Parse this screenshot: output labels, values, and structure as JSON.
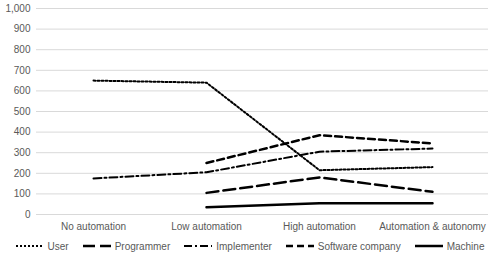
{
  "chart_data": {
    "type": "line",
    "categories": [
      "No automation",
      "Low automation",
      "High automation",
      "Automation & autonomy"
    ],
    "series": [
      {
        "name": "User",
        "color": "#000000",
        "line_style": "dotted",
        "values": [
          650,
          640,
          215,
          230
        ]
      },
      {
        "name": "Programmer",
        "color": "#000000",
        "line_style": "longdash",
        "values": [
          null,
          105,
          180,
          110
        ]
      },
      {
        "name": "Implementer",
        "color": "#000000",
        "line_style": "dashdot",
        "values": [
          175,
          205,
          305,
          320
        ]
      },
      {
        "name": "Software company",
        "color": "#000000",
        "line_style": "dashed",
        "values": [
          null,
          250,
          385,
          345
        ]
      },
      {
        "name": "Machine",
        "color": "#000000",
        "line_style": "solid",
        "values": [
          null,
          35,
          55,
          55
        ]
      }
    ],
    "ylim": [
      0,
      1000
    ],
    "yticks": [
      0,
      100,
      200,
      300,
      400,
      500,
      600,
      700,
      800,
      900,
      1000
    ],
    "grid": true,
    "legend": "bottom"
  }
}
